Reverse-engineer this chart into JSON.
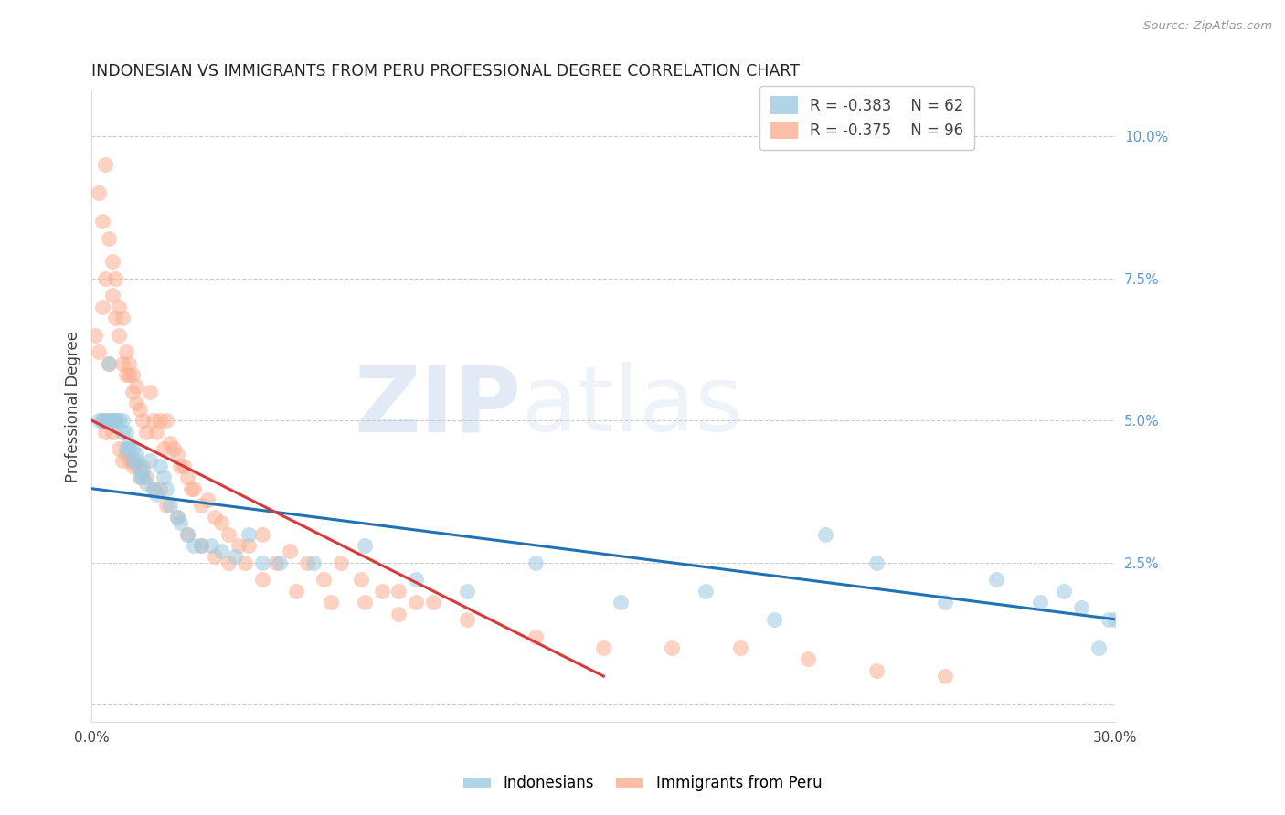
{
  "title": "INDONESIAN VS IMMIGRANTS FROM PERU PROFESSIONAL DEGREE CORRELATION CHART",
  "source": "Source: ZipAtlas.com",
  "ylabel": "Professional Degree",
  "xlim": [
    0.0,
    0.3
  ],
  "ylim": [
    -0.003,
    0.108
  ],
  "yticks": [
    0.0,
    0.025,
    0.05,
    0.075,
    0.1
  ],
  "ytick_labels": [
    "",
    "2.5%",
    "5.0%",
    "7.5%",
    "10.0%"
  ],
  "legend_r1": "R = -0.383",
  "legend_n1": "N = 62",
  "legend_r2": "R = -0.375",
  "legend_n2": "N = 96",
  "blue_color": "#9ecae1",
  "pink_color": "#fcae91",
  "line_blue": "#2171b5",
  "line_pink": "#d63a3a",
  "watermark_zip": "ZIP",
  "watermark_atlas": "atlas",
  "background_color": "#ffffff",
  "grid_color": "#cccccc",
  "right_axis_color": "#5b9bd5",
  "title_color": "#222222",
  "source_color": "#999999",
  "indonesians_x": [
    0.002,
    0.003,
    0.004,
    0.005,
    0.005,
    0.006,
    0.006,
    0.007,
    0.007,
    0.008,
    0.009,
    0.009,
    0.01,
    0.01,
    0.011,
    0.011,
    0.012,
    0.012,
    0.013,
    0.013,
    0.014,
    0.014,
    0.015,
    0.015,
    0.016,
    0.017,
    0.018,
    0.019,
    0.02,
    0.021,
    0.022,
    0.023,
    0.025,
    0.026,
    0.028,
    0.03,
    0.032,
    0.035,
    0.038,
    0.042,
    0.046,
    0.05,
    0.055,
    0.065,
    0.08,
    0.095,
    0.11,
    0.13,
    0.155,
    0.18,
    0.2,
    0.215,
    0.23,
    0.25,
    0.265,
    0.278,
    0.285,
    0.29,
    0.295,
    0.298,
    0.3,
    0.005
  ],
  "indonesians_y": [
    0.05,
    0.05,
    0.05,
    0.05,
    0.05,
    0.05,
    0.05,
    0.05,
    0.05,
    0.05,
    0.05,
    0.048,
    0.048,
    0.045,
    0.046,
    0.045,
    0.045,
    0.043,
    0.044,
    0.043,
    0.042,
    0.04,
    0.041,
    0.04,
    0.039,
    0.043,
    0.038,
    0.037,
    0.042,
    0.04,
    0.038,
    0.035,
    0.033,
    0.032,
    0.03,
    0.028,
    0.028,
    0.028,
    0.027,
    0.026,
    0.03,
    0.025,
    0.025,
    0.025,
    0.028,
    0.022,
    0.02,
    0.025,
    0.018,
    0.02,
    0.015,
    0.03,
    0.025,
    0.018,
    0.022,
    0.018,
    0.02,
    0.017,
    0.01,
    0.015,
    0.015,
    0.06
  ],
  "peru_x": [
    0.001,
    0.002,
    0.002,
    0.003,
    0.003,
    0.004,
    0.004,
    0.005,
    0.005,
    0.006,
    0.006,
    0.007,
    0.007,
    0.008,
    0.008,
    0.009,
    0.009,
    0.01,
    0.01,
    0.011,
    0.011,
    0.012,
    0.012,
    0.013,
    0.013,
    0.014,
    0.015,
    0.016,
    0.017,
    0.018,
    0.019,
    0.02,
    0.021,
    0.022,
    0.023,
    0.024,
    0.025,
    0.026,
    0.027,
    0.028,
    0.029,
    0.03,
    0.032,
    0.034,
    0.036,
    0.038,
    0.04,
    0.043,
    0.046,
    0.05,
    0.054,
    0.058,
    0.063,
    0.068,
    0.073,
    0.079,
    0.085,
    0.09,
    0.095,
    0.1,
    0.003,
    0.004,
    0.005,
    0.006,
    0.007,
    0.008,
    0.009,
    0.01,
    0.011,
    0.012,
    0.013,
    0.014,
    0.015,
    0.016,
    0.018,
    0.02,
    0.022,
    0.025,
    0.028,
    0.032,
    0.036,
    0.04,
    0.045,
    0.05,
    0.06,
    0.07,
    0.08,
    0.09,
    0.11,
    0.13,
    0.15,
    0.17,
    0.19,
    0.21,
    0.23,
    0.25
  ],
  "peru_y": [
    0.065,
    0.062,
    0.09,
    0.07,
    0.085,
    0.075,
    0.095,
    0.06,
    0.082,
    0.072,
    0.078,
    0.068,
    0.075,
    0.065,
    0.07,
    0.06,
    0.068,
    0.058,
    0.062,
    0.058,
    0.06,
    0.055,
    0.058,
    0.053,
    0.056,
    0.052,
    0.05,
    0.048,
    0.055,
    0.05,
    0.048,
    0.05,
    0.045,
    0.05,
    0.046,
    0.045,
    0.044,
    0.042,
    0.042,
    0.04,
    0.038,
    0.038,
    0.035,
    0.036,
    0.033,
    0.032,
    0.03,
    0.028,
    0.028,
    0.03,
    0.025,
    0.027,
    0.025,
    0.022,
    0.025,
    0.022,
    0.02,
    0.02,
    0.018,
    0.018,
    0.05,
    0.048,
    0.05,
    0.048,
    0.05,
    0.045,
    0.043,
    0.044,
    0.043,
    0.042,
    0.042,
    0.04,
    0.042,
    0.04,
    0.038,
    0.038,
    0.035,
    0.033,
    0.03,
    0.028,
    0.026,
    0.025,
    0.025,
    0.022,
    0.02,
    0.018,
    0.018,
    0.016,
    0.015,
    0.012,
    0.01,
    0.01,
    0.01,
    0.008,
    0.006,
    0.005
  ],
  "blue_line_x": [
    0.0,
    0.3
  ],
  "blue_line_y": [
    0.038,
    0.015
  ],
  "pink_line_x": [
    0.0,
    0.15
  ],
  "pink_line_y": [
    0.05,
    0.005
  ]
}
